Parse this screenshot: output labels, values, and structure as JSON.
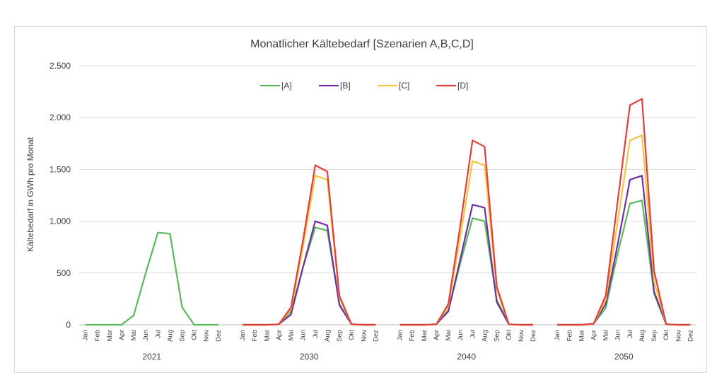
{
  "chart_data": {
    "type": "line",
    "title": "Monatlicher Kältebedarf [Szenarien A,B,C,D]",
    "ylabel": "Kältebedarf in GWh pro Monat",
    "xlabel": "",
    "ylim": [
      0,
      2500
    ],
    "yticks": [
      0,
      500,
      1000,
      1500,
      2000,
      2500
    ],
    "ytick_labels": [
      "0",
      "500",
      "1.000",
      "1.500",
      "2.000",
      "2.500"
    ],
    "months": [
      "Jan",
      "Feb",
      "Mar",
      "Apr",
      "Mai",
      "Jun",
      "Jul",
      "Aug",
      "Sep",
      "Okt",
      "Nov",
      "Dez"
    ],
    "years": [
      "2021",
      "2030",
      "2040",
      "2050"
    ],
    "grid": true,
    "legend_position": "top",
    "series": [
      {
        "name": "[A]",
        "color": "#5cb85c",
        "groups": [
          [
            0,
            0,
            0,
            0,
            90,
            500,
            890,
            880,
            170,
            0,
            0,
            0
          ],
          [
            0,
            0,
            0,
            5,
            130,
            560,
            940,
            910,
            200,
            5,
            0,
            0
          ],
          [
            0,
            0,
            0,
            5,
            140,
            600,
            1030,
            1000,
            240,
            5,
            0,
            0
          ],
          [
            0,
            0,
            0,
            10,
            160,
            690,
            1170,
            1200,
            300,
            5,
            0,
            0
          ]
        ]
      },
      {
        "name": "[B]",
        "color": "#7030a0",
        "groups": [
          null,
          [
            0,
            0,
            0,
            5,
            100,
            560,
            1000,
            960,
            190,
            5,
            0,
            0
          ],
          [
            0,
            0,
            0,
            5,
            130,
            640,
            1160,
            1130,
            220,
            5,
            0,
            0
          ],
          [
            0,
            0,
            0,
            10,
            200,
            780,
            1400,
            1440,
            320,
            5,
            0,
            0
          ]
        ]
      },
      {
        "name": "[C]",
        "color": "#f4c542",
        "groups": [
          null,
          [
            0,
            0,
            0,
            5,
            150,
            760,
            1440,
            1400,
            260,
            5,
            0,
            0
          ],
          [
            0,
            0,
            0,
            5,
            180,
            860,
            1580,
            1540,
            340,
            5,
            0,
            0
          ],
          [
            0,
            0,
            0,
            10,
            240,
            1000,
            1780,
            1830,
            420,
            5,
            0,
            0
          ]
        ]
      },
      {
        "name": "[D]",
        "color": "#e0403a",
        "groups": [
          null,
          [
            0,
            0,
            0,
            5,
            170,
            820,
            1540,
            1480,
            280,
            5,
            0,
            0
          ],
          [
            0,
            0,
            0,
            5,
            200,
            970,
            1780,
            1720,
            370,
            5,
            0,
            0
          ],
          [
            0,
            0,
            0,
            10,
            280,
            1200,
            2120,
            2180,
            520,
            5,
            0,
            0
          ]
        ]
      }
    ]
  }
}
